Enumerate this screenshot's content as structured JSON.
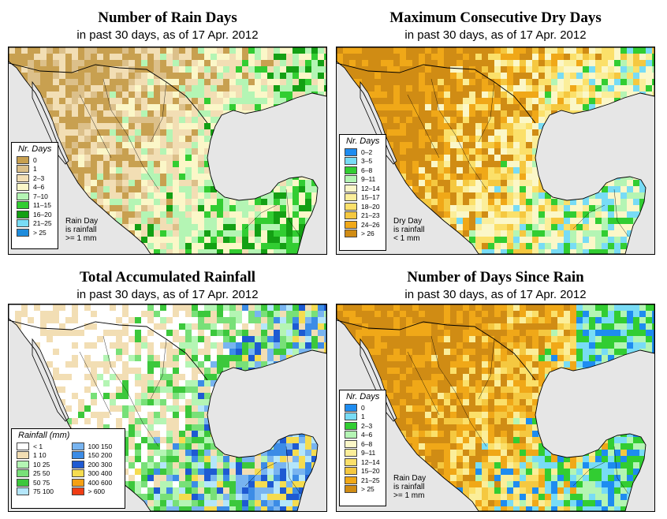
{
  "panels": [
    {
      "id": "rain-days",
      "title": "Number of Rain Days",
      "subtitle": "in past 30 days, as of  17 Apr. 2012",
      "legend_title": "Nr. Days",
      "legend": [
        {
          "label": "0",
          "color": "#c8a050"
        },
        {
          "label": "1",
          "color": "#dcc08a"
        },
        {
          "label": "2–3",
          "color": "#f2deb4"
        },
        {
          "label": "4–6",
          "color": "#fbf7c8"
        },
        {
          "label": "7–10",
          "color": "#b4f5b4"
        },
        {
          "label": "11–15",
          "color": "#32cd32"
        },
        {
          "label": "16–20",
          "color": "#14a014"
        },
        {
          "label": "21–25",
          "color": "#78dcf5"
        },
        {
          "label": "> 25",
          "color": "#1e8cdc"
        }
      ],
      "note": [
        "Rain Day",
        "is rainfall",
        ">= 1 mm"
      ]
    },
    {
      "id": "dry-days",
      "title": "Maximum Consecutive Dry Days",
      "subtitle": "in past 30 days, as of  17 Apr. 2012",
      "legend_title": "Nr. Days",
      "legend": [
        {
          "label": "0–2",
          "color": "#1e8cf0"
        },
        {
          "label": "3–5",
          "color": "#78dcf5"
        },
        {
          "label": "6–8",
          "color": "#32cd32"
        },
        {
          "label": "9–11",
          "color": "#b4f5b4"
        },
        {
          "label": "12–14",
          "color": "#fbf7c8"
        },
        {
          "label": "15–17",
          "color": "#fbee9a"
        },
        {
          "label": "18–20",
          "color": "#fbe06a"
        },
        {
          "label": "21–23",
          "color": "#f5c840"
        },
        {
          "label": "24–26",
          "color": "#f0a818"
        },
        {
          "label": "> 26",
          "color": "#d08c14"
        }
      ],
      "note": [
        "Dry Day",
        "is rainfall",
        "< 1 mm"
      ]
    },
    {
      "id": "total-rain",
      "title": "Total Accumulated Rainfall",
      "subtitle": "in past 30 days, as of  17 Apr. 2012",
      "legend_title": "Rainfall (mm)",
      "legend": [
        {
          "label": "< 1",
          "color": "#ffffff"
        },
        {
          "label": "1    10",
          "color": "#f2deb4"
        },
        {
          "label": "10    25",
          "color": "#b4f5b4"
        },
        {
          "label": "25    50",
          "color": "#78e078"
        },
        {
          "label": "50    75",
          "color": "#3cc83c"
        },
        {
          "label": "75    100",
          "color": "#b4e6fa"
        },
        {
          "label": "100    150",
          "color": "#78b4f0"
        },
        {
          "label": "150    200",
          "color": "#3c8ce6"
        },
        {
          "label": "200    300",
          "color": "#1e5ad2"
        },
        {
          "label": "300    400",
          "color": "#f5dc50"
        },
        {
          "label": "400    600",
          "color": "#f5a014"
        },
        {
          "label": "> 600",
          "color": "#f03c14"
        }
      ],
      "note": []
    },
    {
      "id": "days-since",
      "title": "Number of Days Since Rain",
      "subtitle": "in past 30 days, as of  17 Apr. 2012",
      "legend_title": "Nr. Days",
      "legend": [
        {
          "label": "0",
          "color": "#1e8cf0"
        },
        {
          "label": "1",
          "color": "#78dcf5"
        },
        {
          "label": "2–3",
          "color": "#32cd32"
        },
        {
          "label": "4–6",
          "color": "#b4f5b4"
        },
        {
          "label": "6–8",
          "color": "#fbf7c8"
        },
        {
          "label": "9–11",
          "color": "#fbee9a"
        },
        {
          "label": "12–14",
          "color": "#fbe06a"
        },
        {
          "label": "15–20",
          "color": "#f5c840"
        },
        {
          "label": "21–25",
          "color": "#f0a818"
        },
        {
          "label": "> 25",
          "color": "#d08c14"
        }
      ],
      "note": [
        "Rain Day",
        "is rainfall",
        ">= 1 mm"
      ]
    }
  ]
}
